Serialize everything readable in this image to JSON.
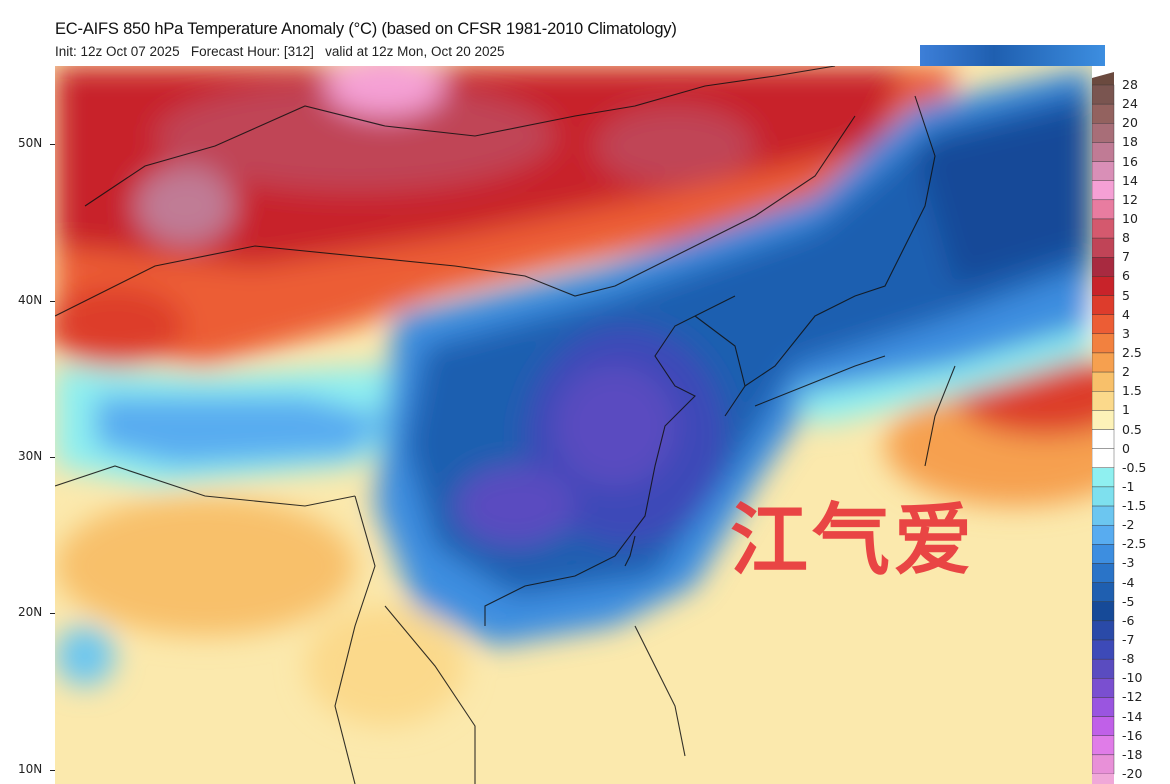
{
  "header": {
    "title": "EC-AIFS 850 hPa Temperature Anomaly (°C) (based on CFSR 1981-2010 Climatology)",
    "subtitle": "Init: 12z Oct 07 2025   Forecast Hour: [312]   valid at 12z Mon, Oct 20 2025"
  },
  "map": {
    "latitude_labels": [
      "50N",
      "40N",
      "30N",
      "20N",
      "10N"
    ],
    "watermark": "江气爱"
  },
  "colorbar": {
    "labels": [
      "28",
      "24",
      "20",
      "18",
      "16",
      "14",
      "12",
      "10",
      "8",
      "7",
      "6",
      "5",
      "4",
      "3",
      "2.5",
      "2",
      "1.5",
      "1",
      "0.5",
      "0",
      "-0.5",
      "-1",
      "-1.5",
      "-2",
      "-2.5",
      "-3",
      "-4",
      "-5",
      "-6",
      "-7",
      "-8",
      "-10",
      "-12",
      "-14",
      "-16",
      "-18",
      "-20"
    ],
    "colors": [
      "#6b4a3f",
      "#7a5550",
      "#93625f",
      "#a86e78",
      "#c07b95",
      "#d98fb7",
      "#f5a0d5",
      "#e87ca0",
      "#d4596e",
      "#c04457",
      "#a82a40",
      "#c8232a",
      "#dd3c2c",
      "#ec5d35",
      "#f2813f",
      "#f6a04f",
      "#f8c06a",
      "#fbd98b",
      "#fdf2b8",
      "#ffffff",
      "#ffffff",
      "#8ff0f0",
      "#7ee0ee",
      "#6cc6f0",
      "#58acf0",
      "#3d8ee0",
      "#2a74c8",
      "#1f5fb0",
      "#164a98",
      "#2a4aa8",
      "#3d4ab8",
      "#5a4cc0",
      "#7a4fd0",
      "#9a55e0",
      "#c060e8",
      "#e07ce8",
      "#e890d8"
    ]
  }
}
